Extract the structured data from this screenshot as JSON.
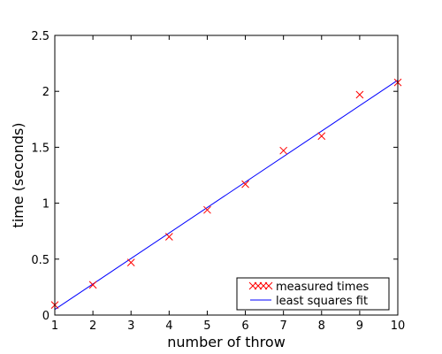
{
  "chart_data": {
    "type": "scatter",
    "title": "",
    "xlabel": "number of throw",
    "ylabel": "time (seconds)",
    "xlim": [
      1,
      10
    ],
    "ylim": [
      0,
      2.5
    ],
    "xticks": [
      1,
      2,
      3,
      4,
      5,
      6,
      7,
      8,
      9,
      10
    ],
    "yticks": [
      0,
      0.5,
      1,
      1.5,
      2,
      2.5
    ],
    "grid": false,
    "legend_position": "bottom-right",
    "series": [
      {
        "name": "measured times",
        "kind": "scatter",
        "marker": "x",
        "color": "#ff0000",
        "x": [
          1,
          2,
          3,
          4,
          5,
          6,
          7,
          8,
          9,
          10
        ],
        "y": [
          0.09,
          0.27,
          0.47,
          0.7,
          0.94,
          1.17,
          1.47,
          1.6,
          1.97,
          2.08
        ]
      },
      {
        "name": "least squares fit",
        "kind": "line",
        "color": "#0000ff",
        "x": [
          1,
          10
        ],
        "y": [
          0.05,
          2.1
        ]
      }
    ]
  }
}
